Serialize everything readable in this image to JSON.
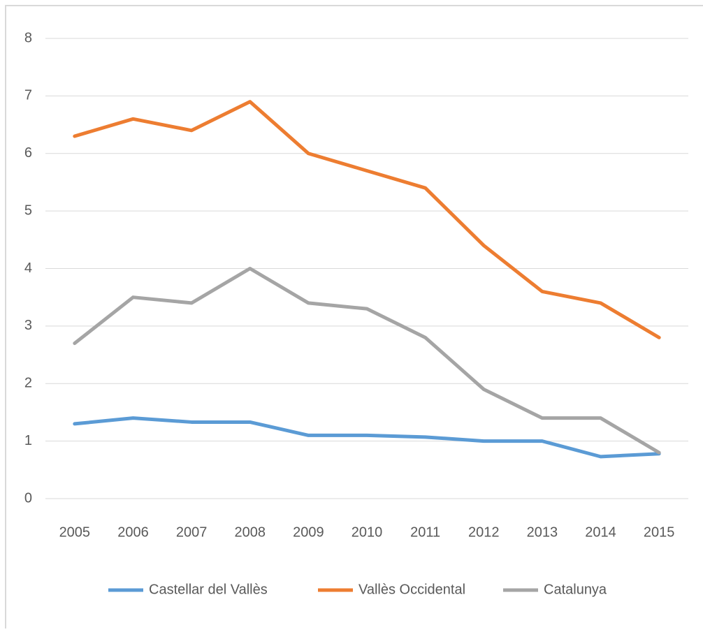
{
  "chart_data": {
    "type": "line",
    "categories": [
      "2005",
      "2006",
      "2007",
      "2008",
      "2009",
      "2010",
      "2011",
      "2012",
      "2013",
      "2014",
      "2015"
    ],
    "series": [
      {
        "name": "Castellar del Vallès",
        "color": "#5b9bd5",
        "values": [
          1.3,
          1.4,
          1.33,
          1.33,
          1.1,
          1.1,
          1.07,
          1.0,
          1.0,
          0.73,
          0.78
        ]
      },
      {
        "name": "Vallès Occidental",
        "color": "#ed7d31",
        "values": [
          6.3,
          6.6,
          6.4,
          6.9,
          6.0,
          5.7,
          5.4,
          4.4,
          3.6,
          3.4,
          2.8
        ]
      },
      {
        "name": "Catalunya",
        "color": "#a5a5a5",
        "values": [
          2.7,
          3.5,
          3.4,
          4.0,
          3.4,
          3.3,
          2.8,
          1.9,
          1.4,
          1.4,
          0.8
        ]
      }
    ],
    "ylim": [
      0,
      8
    ],
    "yticks": [
      0,
      1,
      2,
      3,
      4,
      5,
      6,
      7,
      8
    ],
    "grid": true,
    "legend": "bottom"
  }
}
